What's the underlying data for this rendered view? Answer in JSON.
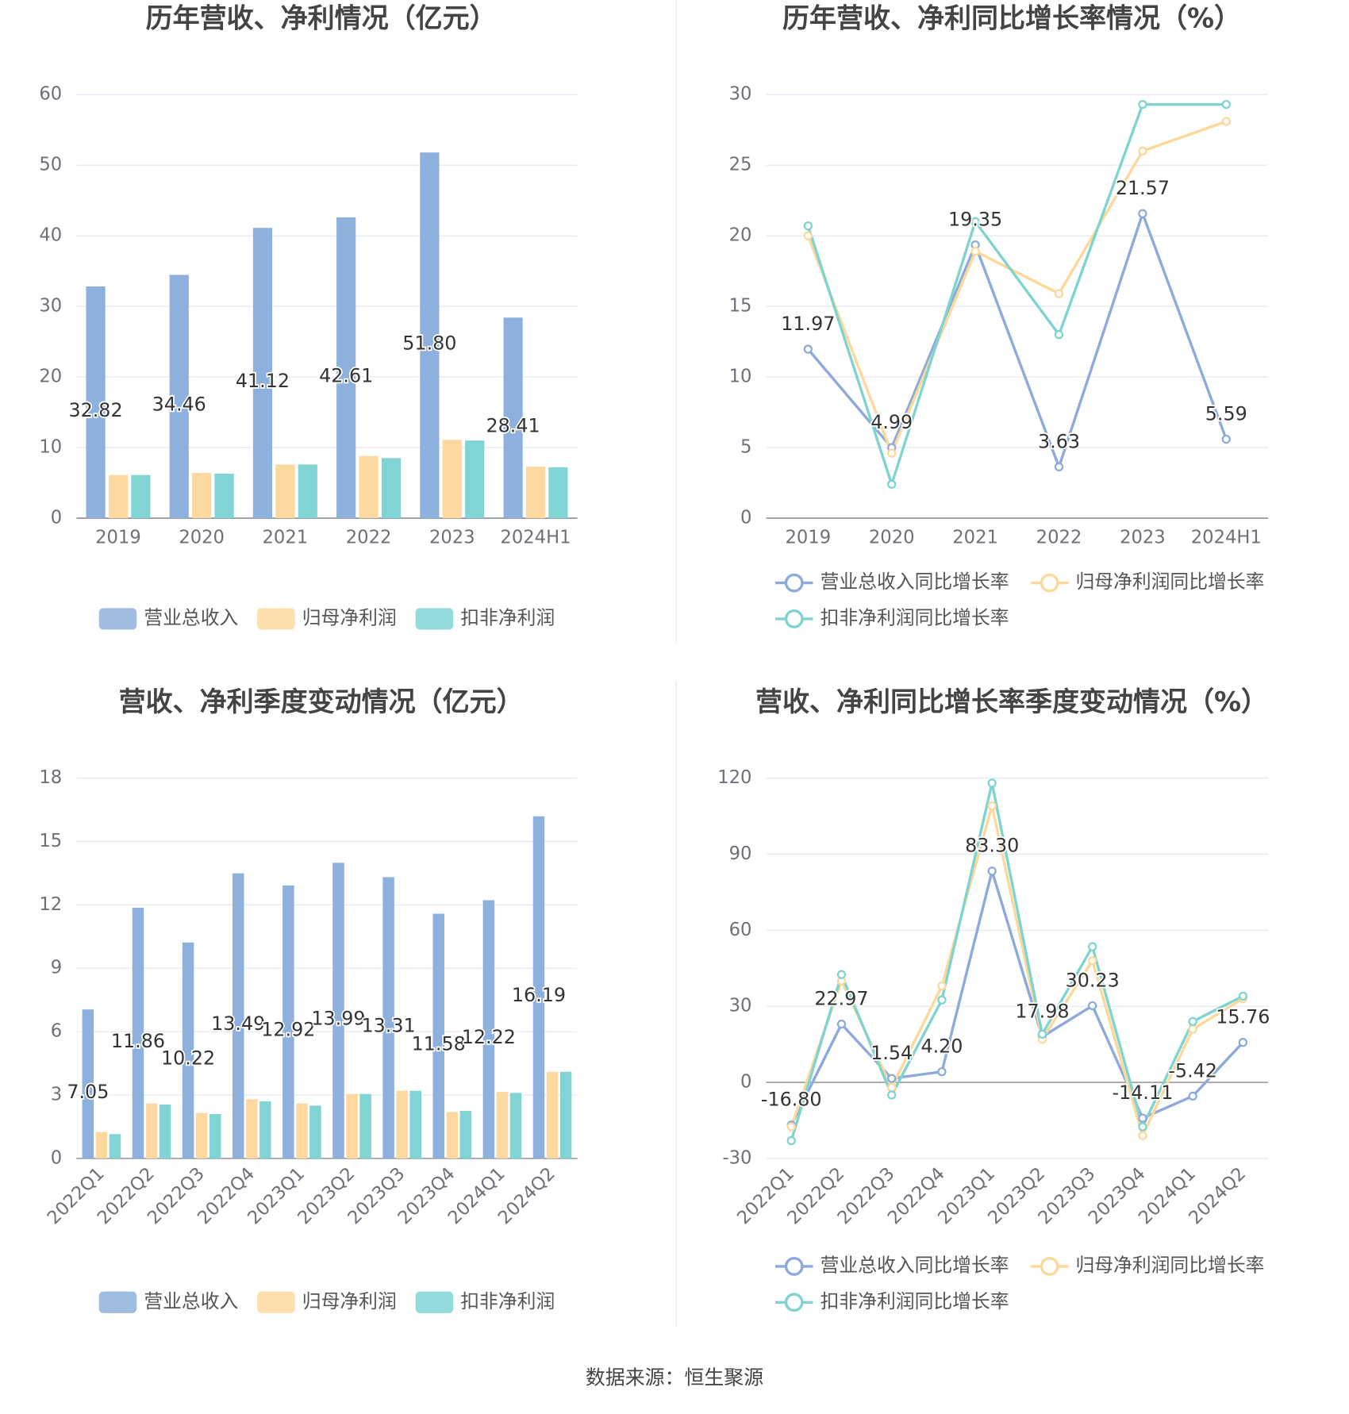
{
  "chart_data": [
    {
      "type": "bar",
      "title": "历年营收、净利情况（亿元）",
      "categories": [
        "2019",
        "2020",
        "2021",
        "2022",
        "2023",
        "2024H1"
      ],
      "series": [
        {
          "name": "营业总收入",
          "color": "#8eb0dc",
          "values": [
            32.82,
            34.46,
            41.12,
            42.61,
            51.8,
            28.41
          ],
          "value_labels": [
            "32.82",
            "34.46",
            "41.12",
            "42.61",
            "51.80",
            "28.41"
          ]
        },
        {
          "name": "归母净利润",
          "color": "#fdd9a0",
          "values": [
            6.1,
            6.4,
            7.6,
            8.8,
            11.1,
            7.3
          ]
        },
        {
          "name": "扣非净利润",
          "color": "#80d4d4",
          "values": [
            6.1,
            6.3,
            7.6,
            8.5,
            11.0,
            7.2
          ]
        }
      ],
      "ylim": [
        0,
        60
      ],
      "yticks": [
        0,
        10,
        20,
        30,
        40,
        50,
        60
      ],
      "grid": true
    },
    {
      "type": "line",
      "title": "历年营收、净利同比增长率情况（%）",
      "categories": [
        "2019",
        "2020",
        "2021",
        "2022",
        "2023",
        "2024H1"
      ],
      "series": [
        {
          "name": "营业总收入同比增长率",
          "color": "#8eaadb",
          "values": [
            11.97,
            4.99,
            19.35,
            3.63,
            21.57,
            5.59
          ],
          "value_labels": [
            "11.97",
            "4.99",
            "19.35",
            "3.63",
            "21.57",
            "5.59"
          ]
        },
        {
          "name": "归母净利润同比增长率",
          "color": "#fdd89b",
          "values": [
            20.0,
            4.6,
            18.9,
            15.9,
            26.0,
            28.1
          ]
        },
        {
          "name": "扣非净利润同比增长率",
          "color": "#7fd4d0",
          "values": [
            20.7,
            2.4,
            21.0,
            13.0,
            29.3,
            29.3
          ]
        }
      ],
      "ylim": [
        0,
        30
      ],
      "yticks": [
        0,
        5,
        10,
        15,
        20,
        25,
        30
      ],
      "grid": true
    },
    {
      "type": "bar",
      "title": "营收、净利季度变动情况（亿元）",
      "categories": [
        "2022Q1",
        "2022Q2",
        "2022Q3",
        "2022Q4",
        "2023Q1",
        "2023Q2",
        "2023Q3",
        "2023Q4",
        "2024Q1",
        "2024Q2"
      ],
      "series": [
        {
          "name": "营业总收入",
          "color": "#8eb0dc",
          "values": [
            7.05,
            11.86,
            10.22,
            13.49,
            12.92,
            13.99,
            13.31,
            11.58,
            12.22,
            16.19
          ],
          "value_labels": [
            "7.05",
            "11.86",
            "10.22",
            "13.49",
            "12.92",
            "13.99",
            "13.31",
            "11.58",
            "12.22",
            "16.19"
          ]
        },
        {
          "name": "归母净利润",
          "color": "#fdd9a0",
          "values": [
            1.25,
            2.6,
            2.15,
            2.8,
            2.6,
            3.05,
            3.2,
            2.2,
            3.15,
            4.1
          ]
        },
        {
          "name": "扣非净利润",
          "color": "#80d4d4",
          "values": [
            1.15,
            2.55,
            2.1,
            2.7,
            2.5,
            3.05,
            3.2,
            2.25,
            3.1,
            4.1
          ]
        }
      ],
      "ylim": [
        0,
        18
      ],
      "yticks": [
        0,
        3,
        6,
        9,
        12,
        15,
        18
      ],
      "grid": true
    },
    {
      "type": "line",
      "title": "营收、净利同比增长率季度变动情况（%）",
      "categories": [
        "2022Q1",
        "2022Q2",
        "2022Q3",
        "2022Q4",
        "2023Q1",
        "2023Q2",
        "2023Q3",
        "2023Q4",
        "2024Q1",
        "2024Q2"
      ],
      "series": [
        {
          "name": "营业总收入同比增长率",
          "color": "#8eaadb",
          "values": [
            -16.8,
            22.97,
            1.54,
            4.2,
            83.3,
            17.98,
            30.23,
            -14.11,
            -5.42,
            15.76
          ],
          "value_labels": [
            "-16.80",
            "22.97",
            "1.54",
            "4.20",
            "83.30",
            "17.98",
            "30.23",
            "-14.11",
            "-5.42",
            "15.76"
          ]
        },
        {
          "name": "归母净利润同比增长率",
          "color": "#fdd89b",
          "values": [
            -17.5,
            40,
            -2,
            38,
            109,
            17,
            48,
            -21,
            21,
            33
          ]
        },
        {
          "name": "扣非净利润同比增长率",
          "color": "#7fd4d0",
          "values": [
            -23,
            42.5,
            -5,
            32.5,
            118,
            19,
            53.5,
            -17.5,
            24,
            34
          ]
        }
      ],
      "ylim": [
        -30,
        120
      ],
      "yticks": [
        -30,
        0,
        30,
        60,
        90,
        120
      ],
      "grid": true
    }
  ],
  "source": "数据来源：恒生聚源"
}
